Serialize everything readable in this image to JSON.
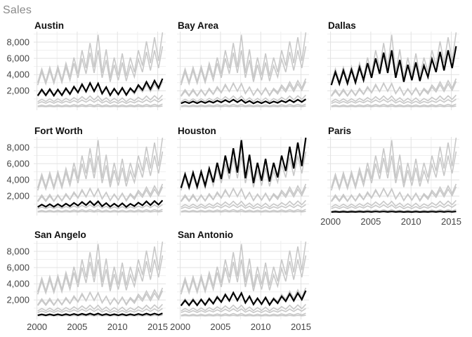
{
  "chart_title": "Sales",
  "chart_data": {
    "type": "line",
    "title": "Sales",
    "layout_hint": "facet small-multiples, 3 columns, highlighted city in black over all-city gray context lines, grid on, no legend",
    "x_ticks": [
      "2000",
      "2005",
      "2010",
      "2015"
    ],
    "x_tick_years": [
      2000,
      2005,
      2010,
      2015
    ],
    "y_ticks": [
      "2,000",
      "4,000",
      "6,000",
      "8,000"
    ],
    "y_tick_values": [
      2000,
      4000,
      6000,
      8000
    ],
    "x_minor_years": [
      2002.5,
      2007.5,
      2012.5
    ],
    "y_minor_values": [
      1000,
      3000,
      5000,
      7000,
      9000
    ],
    "x_range_years": [
      1999.6,
      2016.0
    ],
    "y_range": [
      -400,
      9300
    ],
    "series_start_year": 2000.1,
    "series_step_years": 0.5,
    "series_color": "#c8c8c8",
    "highlight_color": "#000000",
    "grid_major_color": "#e2e2e2",
    "grid_minor_color": "#efefef",
    "series": [
      {
        "name": "Houston",
        "values": [
          3000,
          4700,
          3100,
          4900,
          3150,
          5000,
          3300,
          5400,
          3700,
          6100,
          4100,
          7000,
          4800,
          7900,
          4900,
          8900,
          4200,
          7100,
          3600,
          6100,
          3900,
          6600,
          3800,
          6100,
          4300,
          7000,
          5100,
          8100,
          5400,
          8600,
          5700,
          9200
        ]
      },
      {
        "name": "Dallas",
        "values": [
          2700,
          4300,
          2850,
          4500,
          2900,
          4600,
          3000,
          4900,
          3300,
          5400,
          3600,
          6000,
          4100,
          6700,
          4200,
          7000,
          3600,
          5800,
          3100,
          5200,
          3300,
          5500,
          3200,
          5100,
          3700,
          5900,
          4300,
          6800,
          4500,
          7000,
          4800,
          7500
        ]
      },
      {
        "name": "Austin",
        "values": [
          1400,
          2150,
          1450,
          2200,
          1400,
          2150,
          1450,
          2300,
          1600,
          2500,
          1800,
          2800,
          1900,
          2950,
          1950,
          2900,
          1650,
          2450,
          1450,
          2250,
          1550,
          2350,
          1500,
          2300,
          1800,
          2700,
          2100,
          3100,
          2200,
          3250,
          2350,
          3500
        ]
      },
      {
        "name": "San Antonio",
        "values": [
          1300,
          1950,
          1350,
          2000,
          1350,
          2050,
          1400,
          2150,
          1550,
          2350,
          1750,
          2650,
          1900,
          2900,
          1950,
          2850,
          1650,
          2450,
          1450,
          2200,
          1500,
          2300,
          1400,
          2150,
          1600,
          2450,
          1850,
          2750,
          1900,
          2850,
          2050,
          3150
        ]
      },
      {
        "name": "Fort Worth",
        "values": [
          650,
          950,
          680,
          1000,
          680,
          1010,
          700,
          1060,
          760,
          1160,
          820,
          1270,
          880,
          1360,
          870,
          1350,
          740,
          1130,
          680,
          1060,
          700,
          1110,
          660,
          1050,
          760,
          1190,
          860,
          1350,
          880,
          1380,
          940,
          1470
        ]
      },
      {
        "name": "Bay Area",
        "values": [
          450,
          650,
          470,
          680,
          470,
          690,
          490,
          720,
          530,
          790,
          570,
          860,
          600,
          910,
          590,
          890,
          500,
          740,
          450,
          670,
          470,
          700,
          450,
          680,
          510,
          770,
          570,
          870,
          590,
          900,
          620,
          960
        ]
      },
      {
        "name": "San Angelo",
        "values": [
          110,
          230,
          115,
          240,
          115,
          245,
          120,
          255,
          130,
          280,
          140,
          305,
          150,
          330,
          150,
          325,
          125,
          270,
          115,
          250,
          120,
          260,
          115,
          250,
          130,
          285,
          145,
          320,
          150,
          330,
          160,
          355
        ]
      },
      {
        "name": "Paris",
        "values": [
          35,
          75,
          36,
          78,
          36,
          79,
          38,
          83,
          41,
          90,
          44,
          98,
          47,
          106,
          46,
          104,
          39,
          87,
          36,
          80,
          37,
          83,
          36,
          80,
          40,
          91,
          45,
          102,
          46,
          106,
          49,
          113
        ]
      }
    ],
    "panels": [
      {
        "title": "Austin",
        "series": "Austin",
        "row": 0,
        "col": 0,
        "y_axis": true,
        "x_axis": false
      },
      {
        "title": "Bay Area",
        "series": "Bay Area",
        "row": 0,
        "col": 1,
        "y_axis": false,
        "x_axis": false
      },
      {
        "title": "Dallas",
        "series": "Dallas",
        "row": 0,
        "col": 2,
        "y_axis": false,
        "x_axis": false
      },
      {
        "title": "Fort Worth",
        "series": "Fort Worth",
        "row": 1,
        "col": 0,
        "y_axis": true,
        "x_axis": false
      },
      {
        "title": "Houston",
        "series": "Houston",
        "row": 1,
        "col": 1,
        "y_axis": false,
        "x_axis": false
      },
      {
        "title": "Paris",
        "series": "Paris",
        "row": 1,
        "col": 2,
        "y_axis": false,
        "x_axis": true
      },
      {
        "title": "San Angelo",
        "series": "San Angelo",
        "row": 2,
        "col": 0,
        "y_axis": true,
        "x_axis": true
      },
      {
        "title": "San Antonio",
        "series": "San Antonio",
        "row": 2,
        "col": 1,
        "y_axis": false,
        "x_axis": true
      }
    ]
  }
}
